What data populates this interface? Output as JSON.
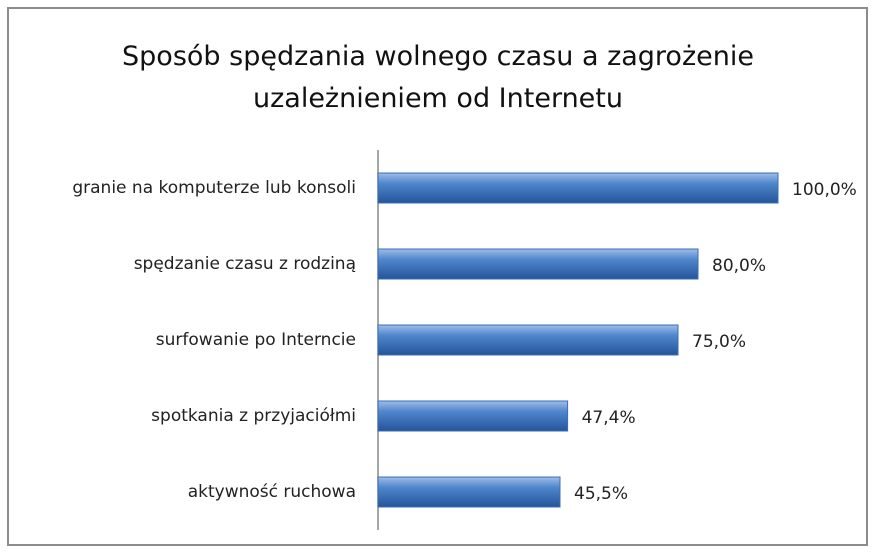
{
  "chart_data": {
    "type": "barh",
    "title": "Sposób spędzania wolnego czasu a zagrożenie uzależnieniem od Internetu",
    "categories": [
      "granie na komputerze lub konsoli",
      "spędzanie czasu z rodziną",
      "surfowanie po Interncie",
      "spotkania z przyjaciółmi",
      "aktywność ruchowa"
    ],
    "values": [
      100,
      80,
      75,
      47.4,
      45.5
    ],
    "value_labels": [
      "100,0%",
      "80,0%",
      "75,0%",
      "47,4%",
      "45,5%"
    ],
    "color": "#3a6fb5",
    "xlim": [
      0,
      100
    ]
  }
}
